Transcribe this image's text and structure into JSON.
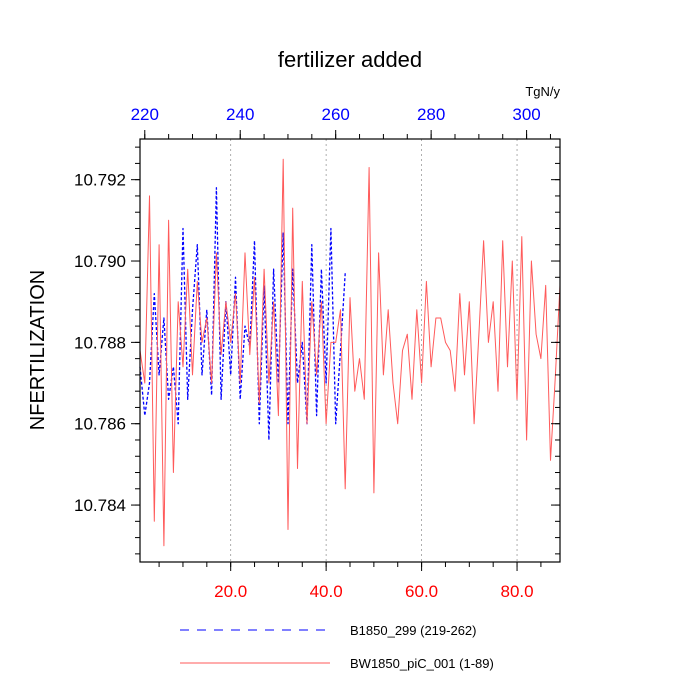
{
  "chart_data": {
    "type": "line",
    "title": "fertilizer added",
    "ylabel": "NFERTILIZATION",
    "bottom_axis": {
      "range": [
        1,
        89
      ],
      "tick_values": [
        20,
        40,
        60,
        80
      ],
      "tick_labels": [
        "20.0",
        "40.0",
        "60.0",
        "80.0"
      ],
      "color": "#ff0000",
      "minor_step": 5
    },
    "top_axis": {
      "range": [
        219,
        307
      ],
      "tick_values": [
        220,
        240,
        260,
        280,
        300
      ],
      "tick_labels": [
        "220",
        "240",
        "260",
        "280",
        "300"
      ],
      "unit_label": "TgN/y",
      "color": "#0000ff",
      "minor_step": 5
    },
    "y_axis": {
      "range": [
        10.7826,
        10.793
      ],
      "tick_values": [
        10.784,
        10.786,
        10.788,
        10.79,
        10.792
      ],
      "tick_labels": [
        "10.784",
        "10.786",
        "10.788",
        "10.790",
        "10.792"
      ],
      "minor_step": 0.0004
    },
    "vertical_gridlines_at": [
      20,
      40,
      60,
      80
    ],
    "series": [
      {
        "name": "B1850_299 (219-262)",
        "color": "#0000ff",
        "dash": "dashed",
        "x": [
          1,
          2,
          3,
          4,
          5,
          6,
          7,
          8,
          9,
          10,
          11,
          12,
          13,
          14,
          15,
          16,
          17,
          18,
          19,
          20,
          21,
          22,
          23,
          24,
          25,
          26,
          27,
          28,
          29,
          30,
          31,
          32,
          33,
          34,
          35,
          36,
          37,
          38,
          39,
          40,
          41,
          42,
          43,
          44
        ],
        "y": [
          10.7874,
          10.7862,
          10.787,
          10.7892,
          10.7872,
          10.7886,
          10.7866,
          10.7874,
          10.786,
          10.7908,
          10.7866,
          10.7888,
          10.7904,
          10.7872,
          10.7888,
          10.7867,
          10.7918,
          10.7866,
          10.789,
          10.7872,
          10.7896,
          10.7866,
          10.7884,
          10.7879,
          10.7905,
          10.786,
          10.7894,
          10.7856,
          10.7898,
          10.787,
          10.7907,
          10.786,
          10.7898,
          10.787,
          10.788,
          10.786,
          10.7904,
          10.7862,
          10.7898,
          10.787,
          10.7908,
          10.786,
          10.7878,
          10.7897
        ]
      },
      {
        "name": "BW1850_piC_001 (1-89)",
        "color": "#ff5a5a",
        "dash": "solid",
        "x": [
          1,
          2,
          3,
          4,
          5,
          6,
          7,
          8,
          9,
          10,
          11,
          12,
          13,
          14,
          15,
          16,
          17,
          18,
          19,
          20,
          21,
          22,
          23,
          24,
          25,
          26,
          27,
          28,
          29,
          30,
          31,
          32,
          33,
          34,
          35,
          36,
          37,
          38,
          39,
          40,
          41,
          42,
          43,
          44,
          45,
          46,
          47,
          48,
          49,
          50,
          51,
          52,
          53,
          54,
          55,
          56,
          57,
          58,
          59,
          60,
          61,
          62,
          63,
          64,
          65,
          66,
          67,
          68,
          69,
          70,
          71,
          72,
          73,
          74,
          75,
          76,
          77,
          78,
          79,
          80,
          81,
          82,
          83,
          84,
          85,
          86,
          87,
          88,
          89
        ],
        "y": [
          10.7878,
          10.787,
          10.7916,
          10.7836,
          10.7904,
          10.783,
          10.791,
          10.7848,
          10.789,
          10.7874,
          10.7898,
          10.7872,
          10.7895,
          10.788,
          10.7886,
          10.787,
          10.7902,
          10.7877,
          10.789,
          10.788,
          10.7892,
          10.787,
          10.7902,
          10.7877,
          10.7896,
          10.7865,
          10.7898,
          10.787,
          10.789,
          10.7862,
          10.7925,
          10.7834,
          10.7913,
          10.7849,
          10.7895,
          10.786,
          10.789,
          10.7872,
          10.789,
          10.786,
          10.788,
          10.788,
          10.7888,
          10.7844,
          10.7891,
          10.7868,
          10.7876,
          10.7866,
          10.7923,
          10.7843,
          10.7902,
          10.7872,
          10.7888,
          10.787,
          10.786,
          10.7878,
          10.7882,
          10.7866,
          10.7888,
          10.787,
          10.7895,
          10.7874,
          10.7886,
          10.7886,
          10.788,
          10.7878,
          10.7868,
          10.7892,
          10.7872,
          10.789,
          10.786,
          10.7882,
          10.7905,
          10.788,
          10.789,
          10.7868,
          10.7905,
          10.7874,
          10.79,
          10.7866,
          10.7906,
          10.7856,
          10.79,
          10.7882,
          10.7876,
          10.7894,
          10.7851,
          10.7871,
          10.7894
        ]
      }
    ],
    "legend": {
      "placement": "bottom"
    }
  }
}
